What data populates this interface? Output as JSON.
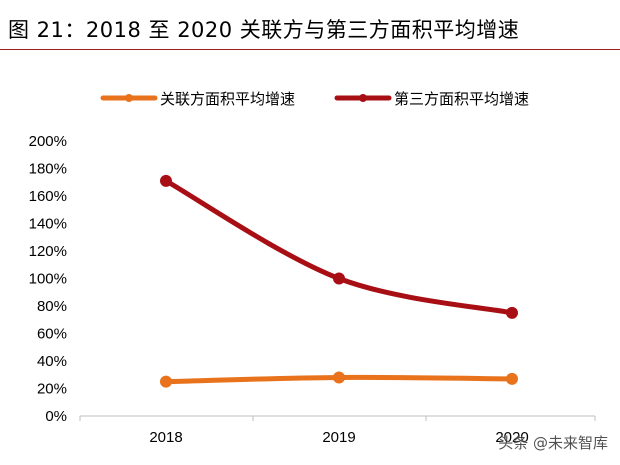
{
  "figure": {
    "label": "图 21：2018 至 2020 关联方与第三方面积平均增速"
  },
  "watermark": "头条 @未来智库",
  "colors": {
    "related": "#e8731c",
    "third": "#a80f14",
    "rule": "#a02020"
  },
  "chart_data": {
    "type": "line",
    "title": "2018 至 2020 关联方与第三方面积平均增速",
    "categories": [
      "2018",
      "2019",
      "2020"
    ],
    "series": [
      {
        "name": "关联方面积平均增速",
        "values": [
          25,
          28,
          27
        ]
      },
      {
        "name": "第三方面积平均增速",
        "values": [
          171,
          100,
          75
        ]
      }
    ],
    "ylim": [
      0,
      200
    ],
    "yticks": [
      0,
      20,
      40,
      60,
      80,
      100,
      120,
      140,
      160,
      180,
      200
    ],
    "ytick_labels": [
      "0%",
      "20%",
      "40%",
      "60%",
      "80%",
      "100%",
      "120%",
      "140%",
      "160%",
      "180%",
      "200%"
    ],
    "xlabel": "",
    "ylabel": "",
    "legend_position": "top",
    "grid": false
  }
}
